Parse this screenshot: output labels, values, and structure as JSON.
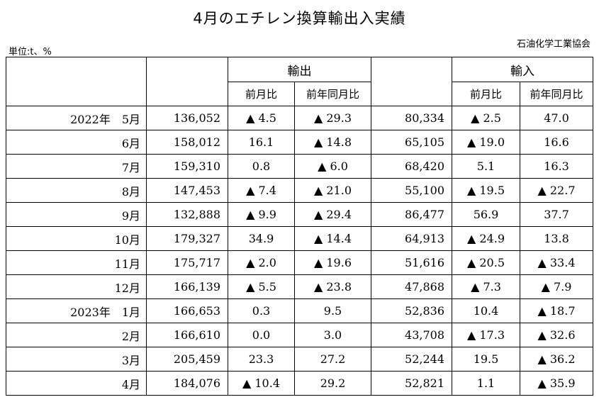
{
  "title": "4月のエチレン換算輸出入実績",
  "unit": "単位:t、%",
  "source": "石油化学工業協会",
  "header": {
    "export": "輸出",
    "import": "輸入",
    "mom": "前月比",
    "yoy": "前年同月比"
  },
  "rows": [
    {
      "period": "2022年　5月",
      "exp": "136,052",
      "exp_mom": "▲ 4.5",
      "exp_yoy": "▲ 29.3",
      "imp": "80,334",
      "imp_mom": "▲ 2.5",
      "imp_yoy": "47.0"
    },
    {
      "period": "6月",
      "exp": "158,012",
      "exp_mom": "16.1",
      "exp_yoy": "▲ 14.8",
      "imp": "65,105",
      "imp_mom": "▲ 19.0",
      "imp_yoy": "16.6"
    },
    {
      "period": "7月",
      "exp": "159,310",
      "exp_mom": "0.8",
      "exp_yoy": "▲ 6.0",
      "imp": "68,420",
      "imp_mom": "5.1",
      "imp_yoy": "16.3"
    },
    {
      "period": "8月",
      "exp": "147,453",
      "exp_mom": "▲ 7.4",
      "exp_yoy": "▲ 21.0",
      "imp": "55,100",
      "imp_mom": "▲ 19.5",
      "imp_yoy": "▲ 22.7"
    },
    {
      "period": "9月",
      "exp": "132,888",
      "exp_mom": "▲ 9.9",
      "exp_yoy": "▲ 29.4",
      "imp": "86,477",
      "imp_mom": "56.9",
      "imp_yoy": "37.7"
    },
    {
      "period": "10月",
      "exp": "179,327",
      "exp_mom": "34.9",
      "exp_yoy": "▲ 14.4",
      "imp": "64,913",
      "imp_mom": "▲ 24.9",
      "imp_yoy": "13.8"
    },
    {
      "period": "11月",
      "exp": "175,717",
      "exp_mom": "▲ 2.0",
      "exp_yoy": "▲ 19.6",
      "imp": "51,616",
      "imp_mom": "▲ 20.5",
      "imp_yoy": "▲ 33.4"
    },
    {
      "period": "12月",
      "exp": "166,139",
      "exp_mom": "▲ 5.5",
      "exp_yoy": "▲ 23.8",
      "imp": "47,868",
      "imp_mom": "▲ 7.3",
      "imp_yoy": "▲ 7.9"
    },
    {
      "period": "2023年　1月",
      "exp": "166,653",
      "exp_mom": "0.3",
      "exp_yoy": "9.5",
      "imp": "52,836",
      "imp_mom": "10.4",
      "imp_yoy": "▲ 18.7"
    },
    {
      "period": "2月",
      "exp": "166,610",
      "exp_mom": "0.0",
      "exp_yoy": "3.0",
      "imp": "43,708",
      "imp_mom": "▲ 17.3",
      "imp_yoy": "▲ 32.6"
    },
    {
      "period": "3月",
      "exp": "205,459",
      "exp_mom": "23.3",
      "exp_yoy": "27.2",
      "imp": "52,244",
      "imp_mom": "19.5",
      "imp_yoy": "▲ 36.2"
    },
    {
      "period": "4月",
      "exp": "184,076",
      "exp_mom": "▲ 10.4",
      "exp_yoy": "29.2",
      "imp": "52,821",
      "imp_mom": "1.1",
      "imp_yoy": "▲ 35.9"
    }
  ]
}
